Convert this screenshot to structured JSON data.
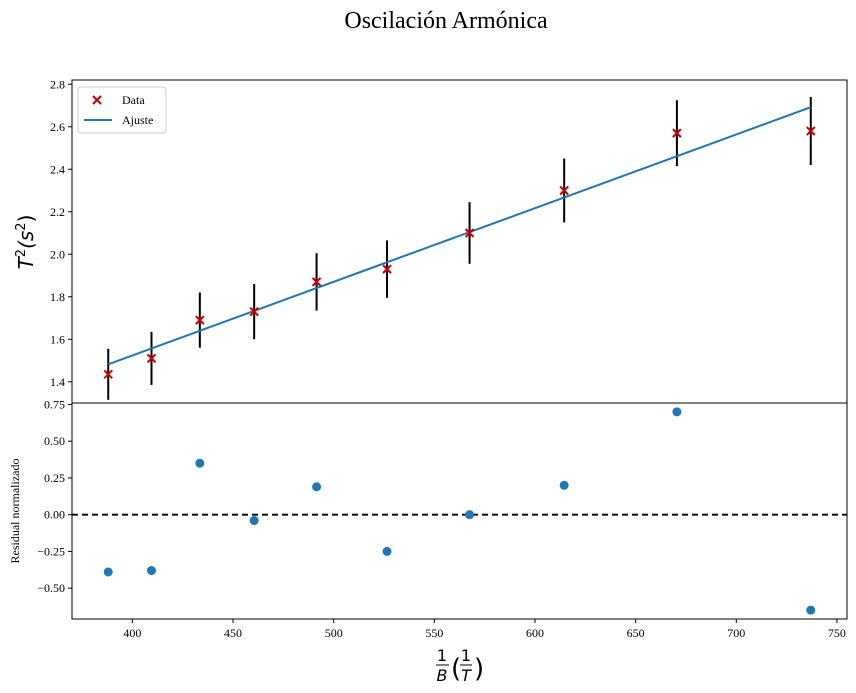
{
  "chart_data": {
    "title": "Oscilación Armónica",
    "xlabel": {
      "num1": "1",
      "den1": "B",
      "num2": "1",
      "den2": "T"
    },
    "x": [
      388,
      409.5,
      433.5,
      460.5,
      491.5,
      526.5,
      567.5,
      614.5,
      670.5,
      737
    ],
    "xlim": [
      370,
      755
    ],
    "xticks": [
      400,
      450,
      500,
      550,
      600,
      650,
      700,
      750
    ],
    "panels": [
      {
        "type": "scatter",
        "ylabel": {
          "base": "T",
          "exp": "2",
          "unit": "(s",
          "unitexp": "2",
          "close": ")"
        },
        "ylim": [
          1.3,
          2.82
        ],
        "yticks": [
          "1.4",
          "1.6",
          "1.8",
          "2.0",
          "2.2",
          "2.4",
          "2.6",
          "2.8"
        ],
        "series": [
          {
            "name": "Data",
            "type": "scatter",
            "marker": "x",
            "color": "#cc0000",
            "y": [
              1.435,
              1.51,
              1.69,
              1.73,
              1.87,
              1.93,
              2.1,
              2.3,
              2.57,
              2.58
            ],
            "yerr": [
              0.12,
              0.125,
              0.13,
              0.13,
              0.135,
              0.135,
              0.145,
              0.15,
              0.155,
              0.16
            ],
            "errcolor": "#000000"
          },
          {
            "name": "Ajuste",
            "type": "line",
            "color": "#1f77b4",
            "x": [
              388,
              737
            ],
            "y": [
              1.482,
              2.692
            ]
          }
        ],
        "legend": "upper-left"
      },
      {
        "type": "scatter",
        "ylabel": "Residual normalizado",
        "ylim": [
          -0.71,
          0.76
        ],
        "yticks": [
          "−0.50",
          "−0.25",
          "0.00",
          "0.25",
          "0.50",
          "0.75"
        ],
        "ytick_values": [
          -0.5,
          -0.25,
          0.0,
          0.25,
          0.5,
          0.75
        ],
        "series": [
          {
            "type": "scatter",
            "marker": "o",
            "color": "#1f77b4",
            "y": [
              -0.39,
              -0.38,
              0.35,
              -0.04,
              0.19,
              -0.25,
              0.0,
              0.2,
              0.7,
              -0.65
            ]
          }
        ],
        "reference_line": {
          "y": 0.0,
          "style": "dashed",
          "color": "#000000"
        }
      }
    ]
  }
}
